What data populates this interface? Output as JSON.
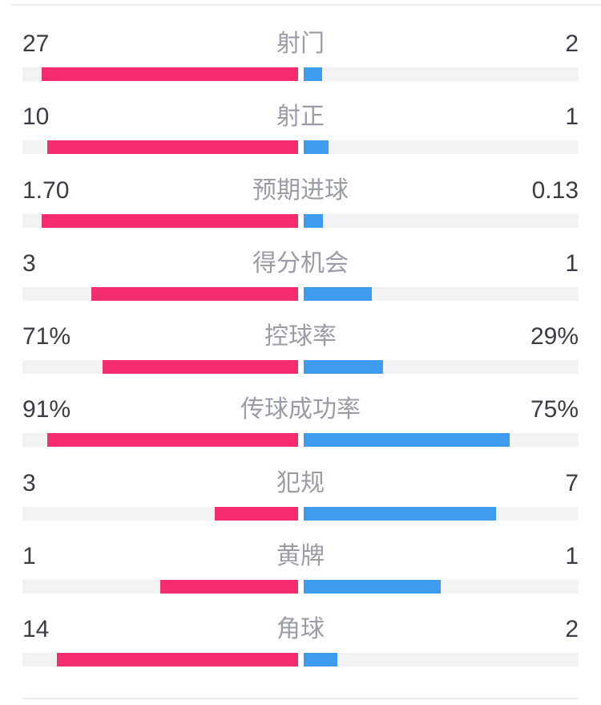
{
  "panel": {
    "background": "#ffffff",
    "separator_color": "#ededef"
  },
  "colors": {
    "home_bar": "#f52d6e",
    "away_bar": "#3e9bf0",
    "track": "#f3f3f5",
    "value_text": "#3a3d43",
    "label_text": "#9a9da6"
  },
  "chart_data": {
    "type": "bar",
    "subtype": "horizontal-split-comparison",
    "title": "",
    "legend_position": "none",
    "grid": false,
    "note_scale": "count rows scaled to value/(home+away) of each half-track; percent rows scaled to pct/100 of each half-track",
    "rows": [
      {
        "label": "射门",
        "home": "27",
        "away": "2"
      },
      {
        "label": "射正",
        "home": "10",
        "away": "1"
      },
      {
        "label": "预期进球",
        "home": "1.70",
        "away": "0.13"
      },
      {
        "label": "得分机会",
        "home": "3",
        "away": "1"
      },
      {
        "label": "控球率",
        "home": "71%",
        "away": "29%"
      },
      {
        "label": "传球成功率",
        "home": "91%",
        "away": "75%"
      },
      {
        "label": "犯规",
        "home": "3",
        "away": "7"
      },
      {
        "label": "黄牌",
        "home": "1",
        "away": "1"
      },
      {
        "label": "角球",
        "home": "14",
        "away": "2"
      }
    ]
  }
}
